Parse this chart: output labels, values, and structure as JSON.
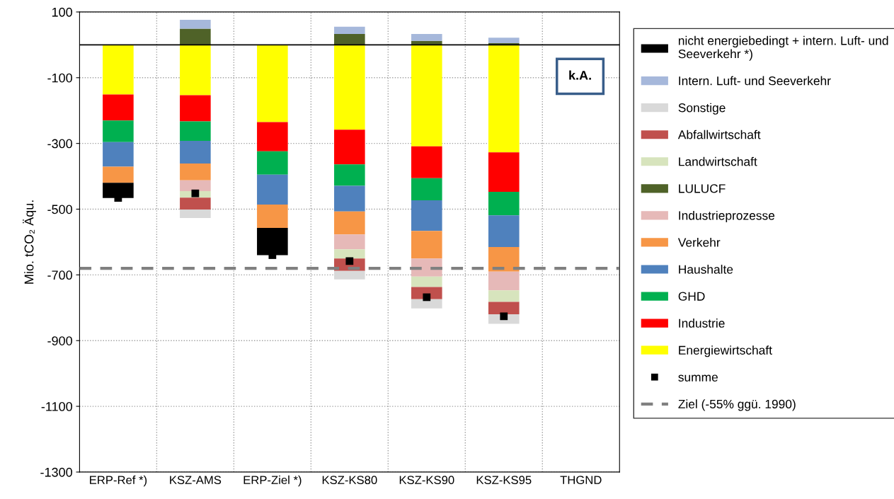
{
  "chart_data": {
    "type": "bar",
    "stacked": true,
    "ylabel": "Mio. tCO₂ Äqu.",
    "categories": [
      "ERP-Ref *)",
      "KSZ-AMS",
      "ERP-Ziel *)",
      "KSZ-KS80",
      "KSZ-KS90",
      "KSZ-KS95",
      "THGND"
    ],
    "series": [
      {
        "name": "Energiewirtschaft",
        "color": "#ffff00",
        "values": [
          -151,
          -153,
          -235,
          -258,
          -309,
          -327,
          null
        ]
      },
      {
        "name": "Industrie",
        "color": "#ff0000",
        "values": [
          -79,
          -80,
          -89,
          -106,
          -97,
          -120,
          null
        ]
      },
      {
        "name": "GHD",
        "color": "#00b050",
        "values": [
          -66,
          -59,
          -71,
          -65,
          -67,
          -72,
          null
        ]
      },
      {
        "name": "Haushalte",
        "color": "#4f81bd",
        "values": [
          -75,
          -69,
          -91,
          -78,
          -93,
          -96,
          null
        ]
      },
      {
        "name": "Verkehr",
        "color": "#f79646",
        "values": [
          -49,
          -51,
          -71,
          -70,
          -84,
          -75,
          null
        ]
      },
      {
        "name": "Industrieprozesse",
        "color": "#e6b9b8",
        "values": [
          null,
          -33,
          null,
          -45,
          -55,
          -57,
          null
        ]
      },
      {
        "name": "LULUCF",
        "color": "#4f6228",
        "values": [
          null,
          49,
          null,
          33,
          12,
          5,
          null
        ]
      },
      {
        "name": "Landwirtschaft",
        "color": "#d7e4bd",
        "values": [
          null,
          -20,
          null,
          -28,
          -32,
          -35,
          null
        ]
      },
      {
        "name": "Abfallwirtschaft",
        "color": "#c0504d",
        "values": [
          null,
          -36,
          null,
          -38,
          -37,
          -38,
          null
        ]
      },
      {
        "name": "Sonstige",
        "color": "#d9d9d9",
        "values": [
          null,
          -26,
          null,
          -26,
          -28,
          -29,
          null
        ]
      },
      {
        "name": "Intern. Luft- und Seeverkehr",
        "color": "#a6b8db",
        "values": [
          null,
          27,
          null,
          22,
          21,
          17,
          null
        ]
      },
      {
        "name": "nicht energiebedingt + intern. Luft- und Seeverkehr *)",
        "color": "#000000",
        "values": [
          -46,
          null,
          -83,
          null,
          null,
          null,
          null
        ]
      },
      {
        "name": "summe",
        "type": "scatter",
        "marker": "square",
        "color": "#000000",
        "values": [
          -466,
          -452,
          -640,
          -658,
          -768,
          -826,
          null
        ]
      }
    ],
    "ylim": [
      -1300,
      100
    ],
    "yticks": [
      100,
      -100,
      -300,
      -500,
      -700,
      -900,
      -1100,
      -1300
    ],
    "grid": true,
    "legend": "right",
    "ref_lines": [
      {
        "axis": "y",
        "value": -680,
        "label": "Ziel (-55% ggü. 1990)",
        "color": "#808080",
        "line_style": "dashed"
      }
    ],
    "annotations": [
      "k.A."
    ]
  }
}
